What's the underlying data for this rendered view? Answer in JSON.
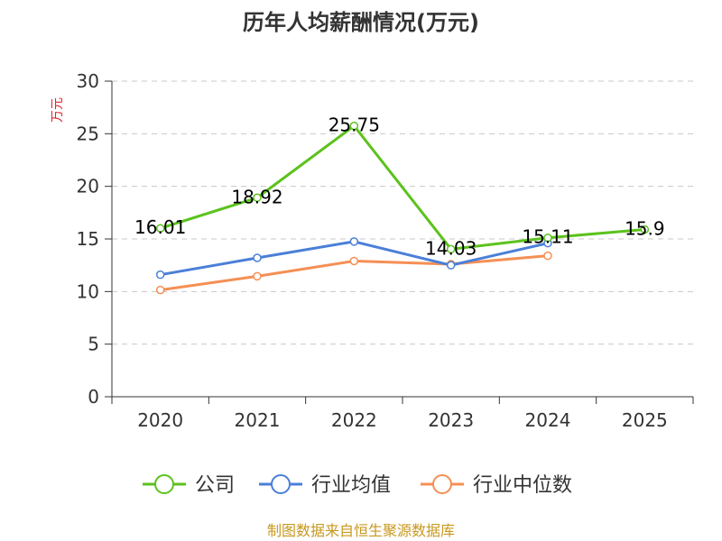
{
  "chart_data": {
    "type": "line",
    "title": "历年人均薪酬情况(万元)",
    "ylabel": "万元",
    "xlabel": "",
    "categories": [
      "2020",
      "2021",
      "2022",
      "2023",
      "2024",
      "2025"
    ],
    "ylim": [
      0,
      30
    ],
    "yticks": [
      0,
      5,
      10,
      15,
      20,
      25,
      30
    ],
    "grid": true,
    "legend_position": "bottom",
    "series": [
      {
        "name": "公司",
        "values": [
          16.01,
          18.92,
          25.75,
          14.03,
          15.11,
          15.9
        ],
        "color": "#5cc21e",
        "show_labels": true
      },
      {
        "name": "行业均值",
        "values": [
          11.6,
          13.2,
          14.75,
          12.5,
          14.6,
          null
        ],
        "color": "#4a7fd8",
        "show_labels": false
      },
      {
        "name": "行业中位数",
        "values": [
          10.15,
          11.45,
          12.9,
          12.6,
          13.4,
          null
        ],
        "color": "#f58f54",
        "show_labels": false
      }
    ],
    "data_labels": [
      "16.01",
      "18.92",
      "25.75",
      "14.03",
      "15.11",
      "15.9"
    ]
  },
  "colors": {
    "ylabel": "#e0242c",
    "source": "#c8981e"
  },
  "source_note": "制图数据来自恒生聚源数据库"
}
